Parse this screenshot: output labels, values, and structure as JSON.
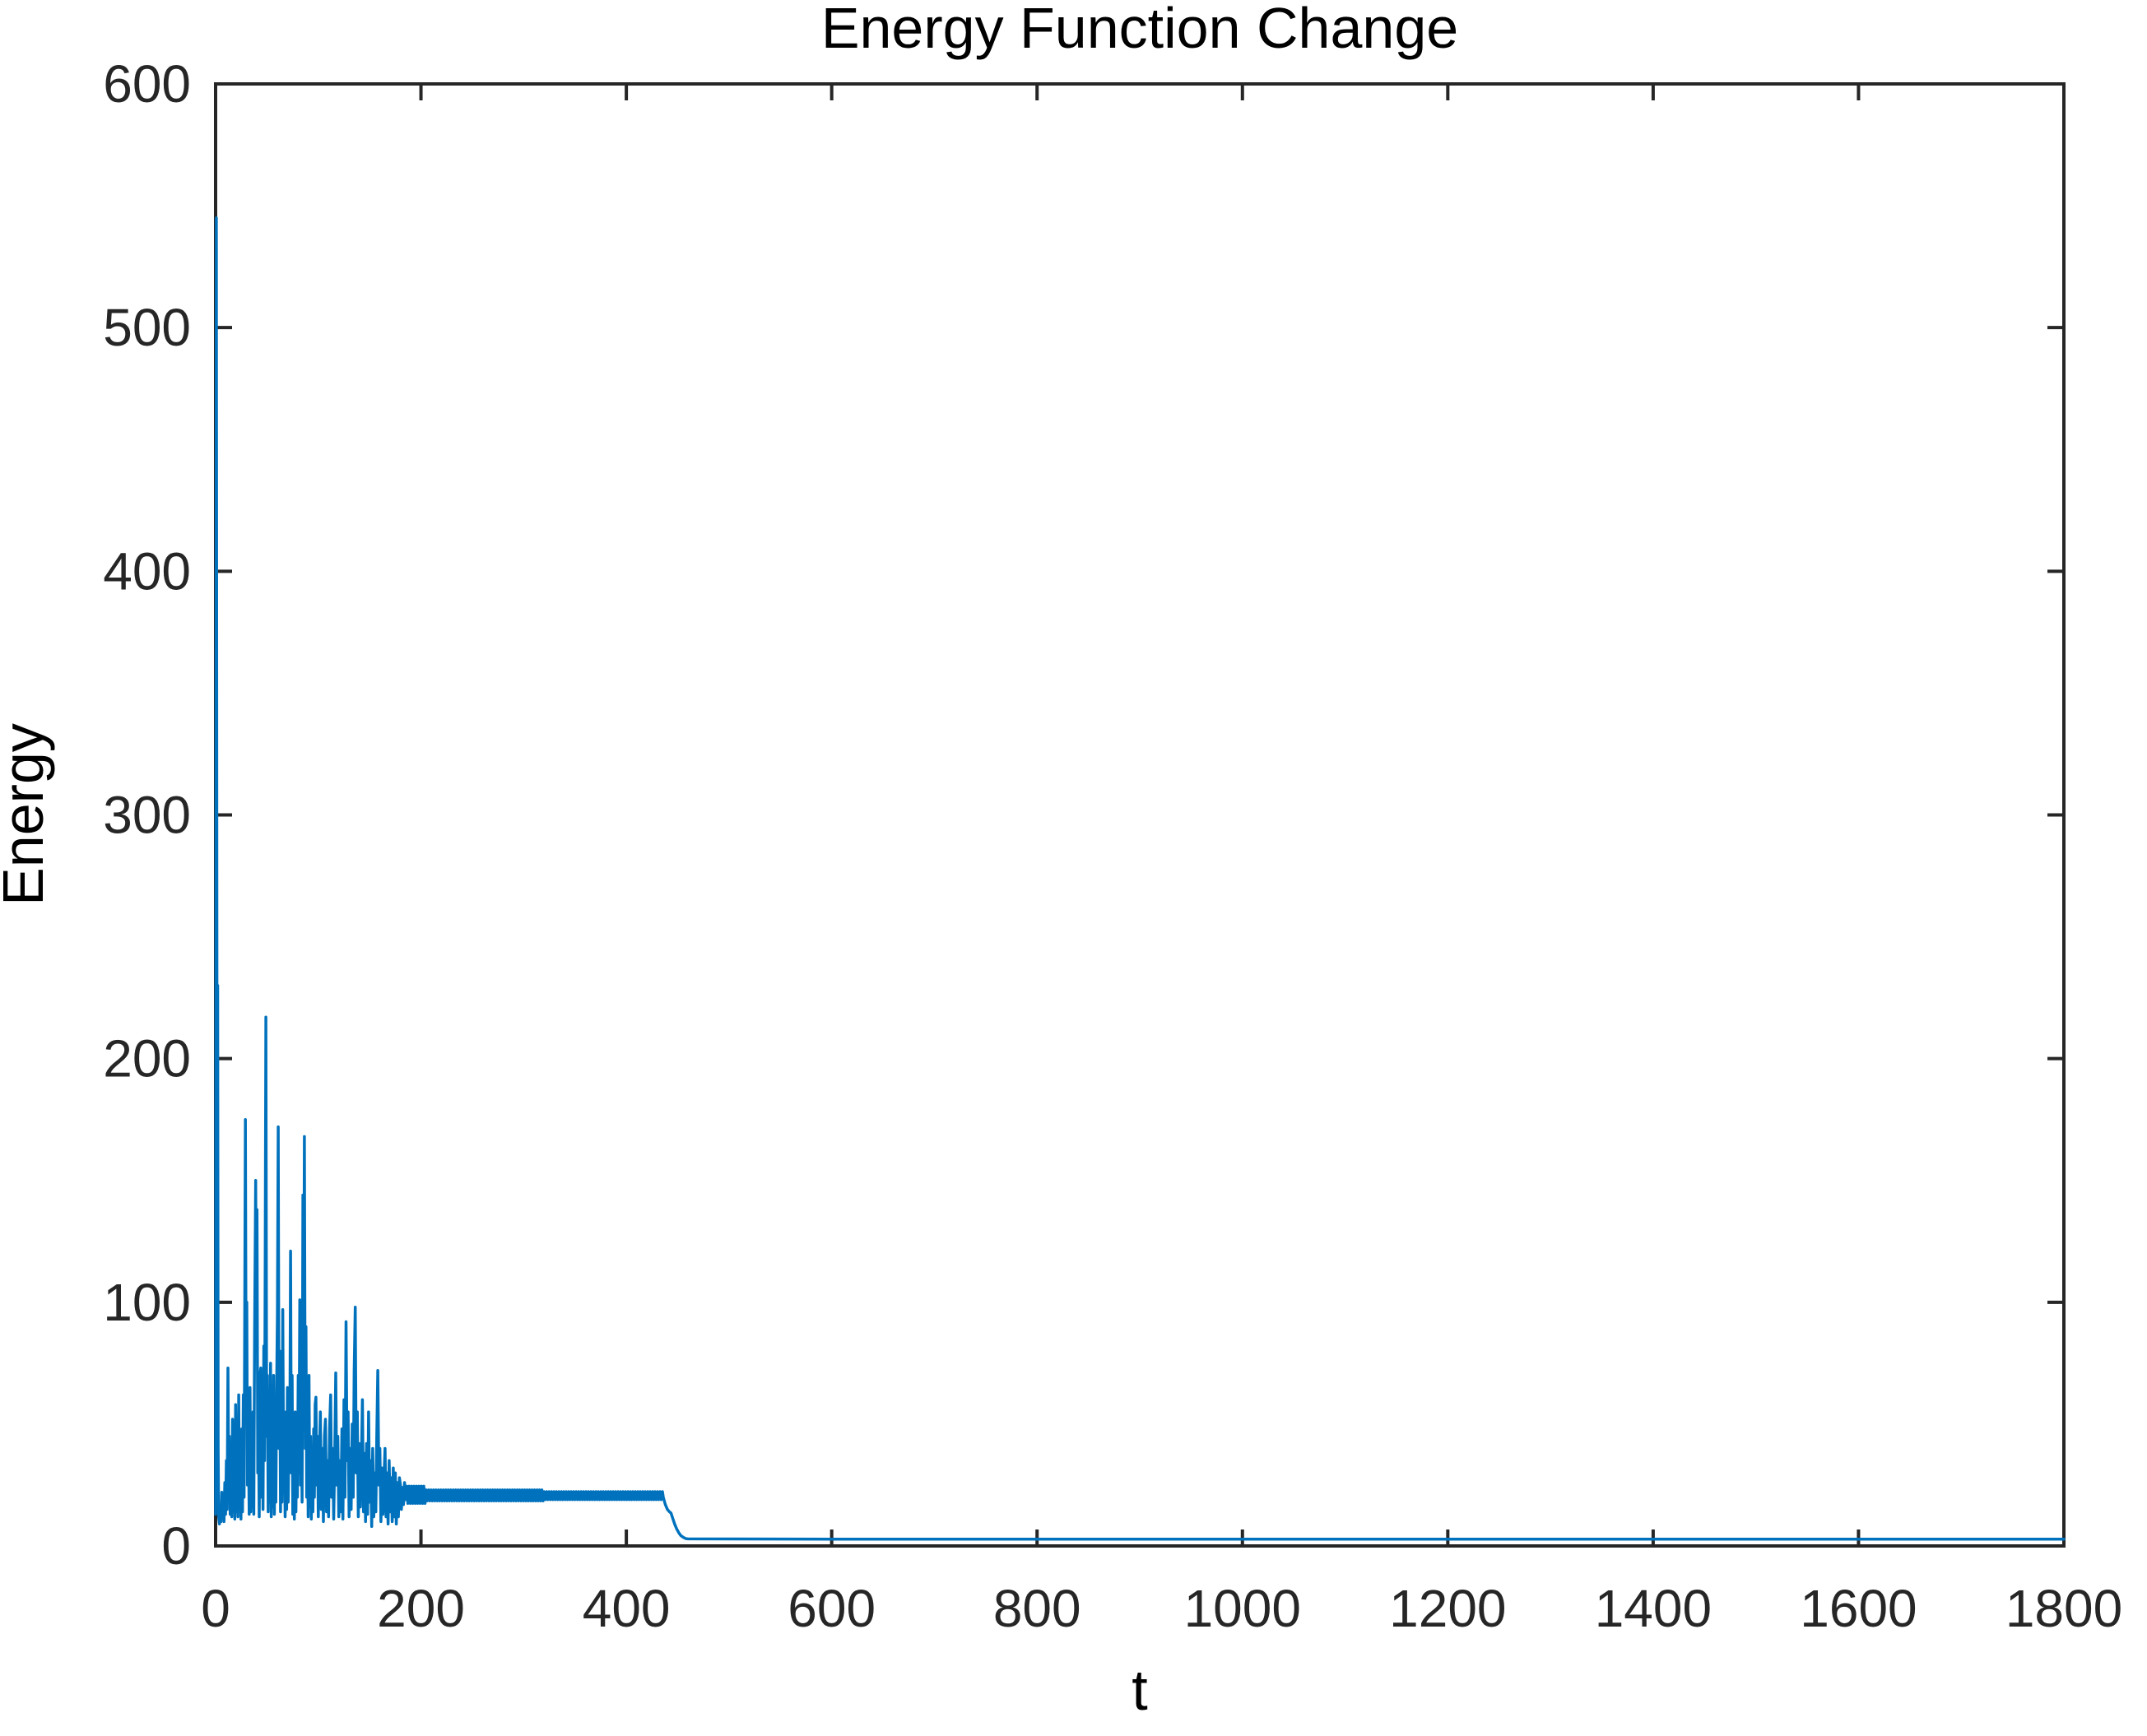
{
  "colors": {
    "background": "#ffffff",
    "axis": "#262626",
    "line": "#0072BD",
    "text": "#000000"
  },
  "chart_data": {
    "type": "line",
    "title": "Energy Function Change",
    "xlabel": "t",
    "ylabel": "Energy",
    "xlim": [
      0,
      1800
    ],
    "ylim": [
      0,
      600
    ],
    "xticks": [
      0,
      200,
      400,
      600,
      800,
      1000,
      1200,
      1400,
      1600,
      1800
    ],
    "yticks": [
      0,
      100,
      200,
      300,
      400,
      500,
      600
    ],
    "grid": false,
    "legend": "none",
    "box": true,
    "line_color": "#0072BD",
    "description": "Single blue line: initial spike to ~545 at t~1, heavy oscillation (10-220) until t~185, plateau band ~18-24 until t~435, smooth drop, then flat ~3 out to t=1800",
    "series": {
      "name": "Energy",
      "segments": [
        {
          "points": [
            [
              0,
              13
            ],
            [
              0.7,
              545
            ],
            [
              1.5,
              90
            ],
            [
              2,
              230
            ],
            [
              2.5,
              40
            ],
            [
              3,
              12
            ],
            [
              3.8,
              9
            ],
            [
              4.5,
              16
            ],
            [
              5.2,
              10
            ],
            [
              6,
              22
            ],
            [
              6.8,
              12
            ],
            [
              7.5,
              18
            ],
            [
              8.2,
              10
            ],
            [
              9,
              26
            ],
            [
              9.7,
              13
            ],
            [
              10.5,
              35
            ],
            [
              11.2,
              15
            ],
            [
              12,
              73
            ],
            [
              12.7,
              28
            ],
            [
              13.5,
              45
            ],
            [
              14.2,
              13
            ],
            [
              15,
              40
            ],
            [
              15.7,
              12
            ],
            [
              16.5,
              52
            ],
            [
              17.2,
              14
            ],
            [
              18,
              42
            ],
            [
              18.7,
              11
            ],
            [
              19.5,
              58
            ],
            [
              20.2,
              14
            ],
            [
              21,
              35
            ],
            [
              21.7,
              12
            ],
            [
              22.5,
              62
            ],
            [
              23.2,
              15
            ],
            [
              24,
              38
            ],
            [
              24.7,
              11
            ],
            [
              25.5,
              48
            ],
            [
              26.2,
              14
            ],
            [
              27,
              62
            ],
            [
              27.7,
              20
            ],
            [
              28.3,
              85
            ],
            [
              29,
              175
            ],
            [
              29.7,
              60
            ],
            [
              30.4,
              100
            ],
            [
              31,
              25
            ],
            [
              32,
              45
            ],
            [
              32.7,
              13
            ],
            [
              33.5,
              65
            ],
            [
              34.2,
              14
            ],
            [
              35,
              40
            ],
            [
              35.7,
              16
            ],
            [
              36.5,
              55
            ],
            [
              37.2,
              13
            ],
            [
              38,
              88
            ],
            [
              39,
              150
            ],
            [
              39.6,
              95
            ],
            [
              40.3,
              138
            ],
            [
              41,
              30
            ],
            [
              41.7,
              55
            ],
            [
              42.5,
              12
            ],
            [
              43.2,
              70
            ],
            [
              44,
              73
            ],
            [
              44.7,
              20
            ],
            [
              45.5,
              60
            ],
            [
              46.2,
              15
            ],
            [
              47,
              82
            ],
            [
              47.7,
              35
            ],
            [
              48.3,
              120
            ],
            [
              49,
              217
            ],
            [
              49.7,
              45
            ],
            [
              50.5,
              70
            ],
            [
              51.2,
              14
            ],
            [
              52,
              58
            ],
            [
              52.7,
              18
            ],
            [
              53.5,
              75
            ],
            [
              54.2,
              12
            ],
            [
              55,
              45
            ],
            [
              55.7,
              16
            ],
            [
              56.5,
              70
            ],
            [
              57.2,
              13
            ],
            [
              58,
              50
            ],
            [
              58.7,
              18
            ],
            [
              59.5,
              65
            ],
            [
              60.2,
              95
            ],
            [
              61,
              172
            ],
            [
              61.7,
              40
            ],
            [
              62.5,
              80
            ],
            [
              63.2,
              14
            ],
            [
              64,
              60
            ],
            [
              64.7,
              18
            ],
            [
              65.4,
              97
            ],
            [
              66.2,
              30
            ],
            [
              67,
              48
            ],
            [
              67.7,
              12
            ],
            [
              68.5,
              55
            ],
            [
              69.2,
              15
            ],
            [
              70,
              65
            ],
            [
              70.7,
              18
            ],
            [
              71.5,
              50
            ],
            [
              72.2,
              35
            ],
            [
              73,
              121
            ],
            [
              73.7,
              30
            ],
            [
              74.5,
              70
            ],
            [
              75.2,
              13
            ],
            [
              76,
              45
            ],
            [
              76.7,
              11
            ],
            [
              77.5,
              55
            ],
            [
              78.2,
              14
            ],
            [
              79,
              48
            ],
            [
              79.7,
              20
            ],
            [
              80.5,
              70
            ],
            [
              81.2,
              30
            ],
            [
              82,
              101
            ],
            [
              82.7,
              25
            ],
            [
              83.5,
              60
            ],
            [
              84.2,
              18
            ],
            [
              85,
              144
            ],
            [
              85.7,
              60
            ],
            [
              86.5,
              168
            ],
            [
              87.3,
              40
            ],
            [
              88,
              90
            ],
            [
              88.7,
              20
            ],
            [
              89.5,
              55
            ],
            [
              90.2,
              12
            ],
            [
              91,
              70
            ],
            [
              91.7,
              16
            ],
            [
              92.5,
              45
            ],
            [
              93.2,
              11
            ],
            [
              94,
              38
            ],
            [
              94.7,
              14
            ],
            [
              95.5,
              48
            ],
            [
              96.2,
              20
            ],
            [
              97,
              58
            ],
            [
              97.7,
              61
            ],
            [
              98.5,
              25
            ],
            [
              99.2,
              45
            ],
            [
              100,
              12
            ],
            [
              101,
              35
            ],
            [
              102,
              55
            ],
            [
              103,
              15
            ],
            [
              104,
              40
            ],
            [
              105,
              10
            ],
            [
              106,
              45
            ],
            [
              107,
              52
            ],
            [
              108,
              14
            ],
            [
              109,
              35
            ],
            [
              110,
              12
            ],
            [
              111,
              48
            ],
            [
              112,
              62
            ],
            [
              113,
              20
            ],
            [
              114,
              40
            ],
            [
              115,
              11
            ],
            [
              116,
              35
            ],
            [
              117,
              71
            ],
            [
              118,
              25
            ],
            [
              119,
              45
            ],
            [
              120,
              12
            ],
            [
              121,
              35
            ],
            [
              122,
              14
            ],
            [
              123,
              48
            ],
            [
              124,
              11
            ],
            [
              125,
              60
            ],
            [
              126,
              20
            ],
            [
              127,
              92
            ],
            [
              128,
              35
            ],
            [
              129,
              55
            ],
            [
              130,
              12
            ],
            [
              131,
              40
            ],
            [
              132,
              15
            ],
            [
              133,
              50
            ],
            [
              134,
              20
            ],
            [
              135,
              72
            ],
            [
              136,
              98
            ],
            [
              137,
              30
            ],
            [
              138,
              55
            ],
            [
              139,
              12
            ],
            [
              140,
              42
            ],
            [
              141,
              16
            ],
            [
              142,
              35
            ],
            [
              143,
              60
            ],
            [
              144,
              14
            ],
            [
              145,
              38
            ],
            [
              146,
              10
            ],
            [
              147,
              42
            ],
            [
              148,
              13
            ],
            [
              149,
              55
            ],
            [
              150,
              18
            ],
            [
              151,
              35
            ],
            [
              152,
              8
            ],
            [
              153,
              40
            ],
            [
              154,
              12
            ],
            [
              155,
              30
            ],
            [
              156,
              14
            ],
            [
              157,
              46
            ],
            [
              158,
              72
            ],
            [
              159,
              25
            ],
            [
              160,
              40
            ],
            [
              161,
              10
            ],
            [
              162,
              32
            ],
            [
              163,
              13
            ],
            [
              164,
              28
            ],
            [
              165,
              40
            ],
            [
              166,
              12
            ],
            [
              167,
              30
            ],
            [
              168,
              9
            ],
            [
              169,
              35
            ],
            [
              170,
              14
            ],
            [
              171,
              28
            ],
            [
              172,
              10
            ],
            [
              173,
              32
            ],
            [
              174,
              12
            ],
            [
              175,
              30
            ],
            [
              176,
              9
            ],
            [
              177,
              26
            ],
            [
              178,
              12
            ],
            [
              179,
              28
            ],
            [
              180,
              25
            ],
            [
              181,
              15
            ],
            [
              182,
              24
            ],
            [
              183,
              17
            ],
            [
              184,
              26
            ],
            [
              185,
              19
            ]
          ]
        },
        {
          "band": true,
          "t0": 186,
          "t1": 205,
          "hi": 24.5,
          "lo": 17.5,
          "step": 1.2
        },
        {
          "band": true,
          "t0": 205,
          "t1": 320,
          "hi": 23.0,
          "lo": 18.5,
          "step": 1.2
        },
        {
          "band": true,
          "t0": 320,
          "t1": 436,
          "hi": 22.3,
          "lo": 19.0,
          "step": 1.2
        },
        {
          "points": [
            [
              436,
              20
            ],
            [
              438,
              17
            ],
            [
              440,
              15
            ],
            [
              442,
              14
            ],
            [
              443.5,
              13.5
            ],
            [
              445,
              11.5
            ],
            [
              447,
              9
            ],
            [
              449,
              7
            ],
            [
              451,
              5.5
            ],
            [
              453,
              4.3
            ],
            [
              456,
              3.4
            ],
            [
              458,
              3
            ]
          ]
        },
        {
          "points": [
            [
              460,
              2.9
            ],
            [
              600,
              2.8
            ],
            [
              900,
              2.8
            ],
            [
              1200,
              2.8
            ],
            [
              1500,
              2.8
            ],
            [
              1800,
              2.8
            ]
          ]
        }
      ]
    }
  }
}
